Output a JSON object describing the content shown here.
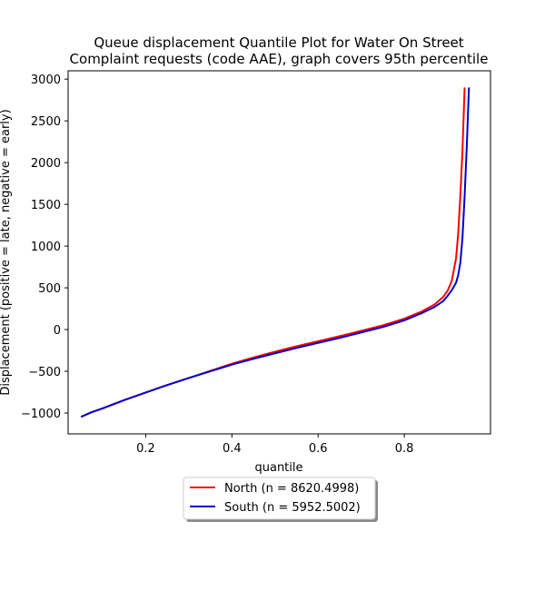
{
  "chart_data": {
    "type": "line",
    "title_line1": "Queue displacement Quantile Plot for Water On Street",
    "title_line2": "Complaint  requests (code AAE), graph covers 95th percentile",
    "xlabel": "quantile",
    "ylabel": "Displacement (positive = late, negative = early)",
    "xlim": [
      0.02,
      1.0
    ],
    "ylim": [
      -1250,
      3100
    ],
    "xticks": [
      {
        "value": 0.2,
        "label": "0.2"
      },
      {
        "value": 0.4,
        "label": "0.4"
      },
      {
        "value": 0.6,
        "label": "0.6"
      },
      {
        "value": 0.8,
        "label": "0.8"
      }
    ],
    "yticks": [
      {
        "value": -1000,
        "label": "−1000"
      },
      {
        "value": -500,
        "label": "−500"
      },
      {
        "value": 0,
        "label": "0"
      },
      {
        "value": 500,
        "label": "500"
      },
      {
        "value": 1000,
        "label": "1000"
      },
      {
        "value": 1500,
        "label": "1500"
      },
      {
        "value": 2000,
        "label": "2000"
      },
      {
        "value": 2500,
        "label": "2500"
      },
      {
        "value": 3000,
        "label": "3000"
      }
    ],
    "legend_position": "below plot",
    "series": [
      {
        "name": "North (n = 8620.4998)",
        "color": "#ff0000",
        "x": [
          0.05,
          0.075,
          0.1,
          0.15,
          0.2,
          0.25,
          0.3,
          0.35,
          0.4,
          0.45,
          0.5,
          0.55,
          0.6,
          0.65,
          0.7,
          0.75,
          0.8,
          0.84,
          0.87,
          0.89,
          0.9,
          0.91,
          0.92,
          0.925,
          0.93,
          0.935,
          0.94
        ],
        "y": [
          -1045,
          -990,
          -945,
          -845,
          -755,
          -665,
          -580,
          -495,
          -410,
          -335,
          -265,
          -200,
          -140,
          -80,
          -15,
          50,
          130,
          215,
          300,
          390,
          460,
          580,
          850,
          1150,
          1600,
          2150,
          2900
        ]
      },
      {
        "name": "South (n = 5952.5002)",
        "color": "#0000cc",
        "x": [
          0.05,
          0.075,
          0.1,
          0.15,
          0.2,
          0.25,
          0.3,
          0.35,
          0.4,
          0.45,
          0.5,
          0.55,
          0.6,
          0.65,
          0.7,
          0.75,
          0.8,
          0.84,
          0.87,
          0.89,
          0.9,
          0.91,
          0.92,
          0.925,
          0.93,
          0.935,
          0.94,
          0.945,
          0.95
        ],
        "y": [
          -1045,
          -990,
          -945,
          -845,
          -755,
          -665,
          -580,
          -500,
          -420,
          -350,
          -285,
          -220,
          -160,
          -100,
          -35,
          30,
          110,
          195,
          270,
          340,
          400,
          470,
          560,
          650,
          800,
          1100,
          1600,
          2200,
          2900
        ]
      }
    ]
  }
}
